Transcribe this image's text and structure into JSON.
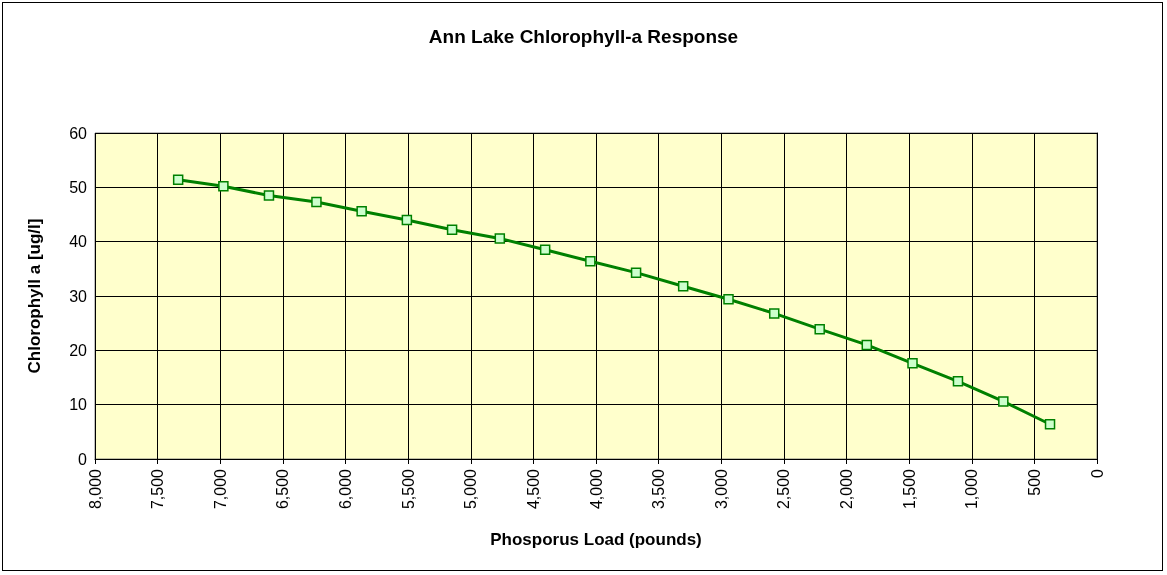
{
  "chart_data": {
    "type": "line",
    "title": "Ann Lake Chlorophyll-a Response",
    "xlabel": "Phosporus Load (pounds)",
    "ylabel": "Chlorophyll a [ug/l]",
    "x": [
      7336,
      6975,
      6611,
      6232,
      5871,
      5510,
      5149,
      4768,
      4406,
      4045,
      3680,
      3304,
      2942,
      2577,
      2214,
      1838,
      1473,
      1110,
      748,
      375
    ],
    "series": [
      {
        "color": "#008000",
        "values": [
          51.4,
          50.2,
          48.5,
          47.3,
          45.6,
          44.0,
          42.2,
          40.6,
          38.5,
          36.4,
          34.3,
          31.8,
          29.4,
          26.8,
          23.9,
          21.0,
          17.6,
          14.3,
          10.6,
          6.4
        ]
      }
    ],
    "xlim": [
      8000,
      0
    ],
    "xticks": [
      {
        "value": 8000,
        "label": "8,000"
      },
      {
        "value": 7500,
        "label": "7,500"
      },
      {
        "value": 7000,
        "label": "7,000"
      },
      {
        "value": 6500,
        "label": "6,500"
      },
      {
        "value": 6000,
        "label": "6,000"
      },
      {
        "value": 5500,
        "label": "5,500"
      },
      {
        "value": 5000,
        "label": "5,000"
      },
      {
        "value": 4500,
        "label": "4,500"
      },
      {
        "value": 4000,
        "label": "4,000"
      },
      {
        "value": 3500,
        "label": "3,500"
      },
      {
        "value": 3000,
        "label": "3,000"
      },
      {
        "value": 2500,
        "label": "2,500"
      },
      {
        "value": 2000,
        "label": "2,000"
      },
      {
        "value": 1500,
        "label": "1,500"
      },
      {
        "value": 1000,
        "label": "1,000"
      },
      {
        "value": 500,
        "label": "500"
      },
      {
        "value": 0,
        "label": "0"
      }
    ],
    "ylim": [
      0,
      60
    ],
    "yticks": [
      0,
      10,
      20,
      30,
      40,
      50,
      60
    ],
    "grid": true,
    "marker": "square",
    "line_style": "solid"
  }
}
